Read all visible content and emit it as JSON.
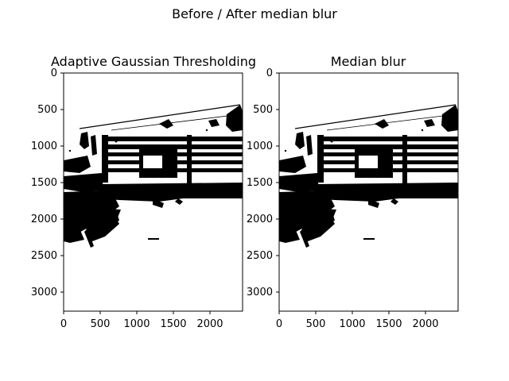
{
  "figure": {
    "suptitle": "Before / After median blur"
  },
  "panels": [
    {
      "title": "Adaptive Gaussian Thresholding",
      "x_ticks": [
        "0",
        "500",
        "1000",
        "1500",
        "2000"
      ],
      "y_ticks": [
        "0",
        "500",
        "1000",
        "1500",
        "2000",
        "2500",
        "3000"
      ],
      "image_desc": "Binary black-and-white image of a bench/railing structure on white ground"
    },
    {
      "title": "Median blur",
      "x_ticks": [
        "0",
        "500",
        "1000",
        "1500",
        "2000"
      ],
      "y_ticks": [
        "0",
        "500",
        "1000",
        "1500",
        "2000",
        "2500",
        "3000"
      ],
      "image_desc": "Same binary image after median blur, slightly smoother edges"
    }
  ],
  "colors": {
    "foreground": "#000000",
    "background": "#ffffff"
  }
}
